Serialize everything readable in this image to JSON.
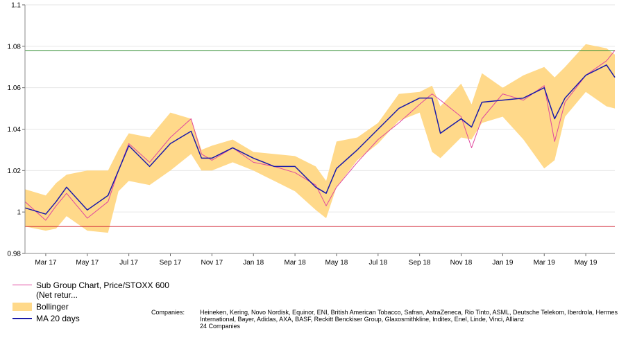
{
  "chart_data": {
    "type": "line",
    "x_ticks": [
      "Mar 17",
      "May 17",
      "Jul 17",
      "Sep 17",
      "Nov 17",
      "Jan 18",
      "Mar 18",
      "May 18",
      "Jul 18",
      "Sep 18",
      "Nov 18",
      "Jan 19",
      "Mar 19",
      "May 19"
    ],
    "x_range_months": [
      0,
      28.4
    ],
    "y_ticks": [
      "0.98",
      "1",
      "1.02",
      "1.04",
      "1.06",
      "1.08",
      "1.1"
    ],
    "ylim": [
      0.98,
      1.1
    ],
    "grid": true,
    "reference_lines": [
      {
        "y": 1.078,
        "color": "#2e8b2e"
      },
      {
        "y": 0.993,
        "color": "#d02030"
      }
    ],
    "months_since_first": [
      0,
      1,
      1.5,
      2,
      3,
      4,
      4.5,
      5,
      6,
      7,
      8,
      8.5,
      9,
      10,
      11,
      12,
      13,
      14,
      14.5,
      15,
      16,
      17,
      18,
      19,
      19.6,
      20,
      21,
      21.5,
      22,
      23,
      24,
      25,
      25.5,
      26,
      27,
      28,
      28.4
    ],
    "series": [
      {
        "name": "Sub Group Chart, Price/STOXX 600 (Net retur...",
        "color": "#e0479e",
        "values": [
          1.005,
          0.996,
          1.003,
          1.009,
          0.997,
          1.005,
          1.02,
          1.033,
          1.024,
          1.036,
          1.045,
          1.028,
          1.025,
          1.031,
          1.024,
          1.022,
          1.019,
          1.013,
          1.003,
          1.012,
          1.024,
          1.035,
          1.043,
          1.052,
          1.057,
          1.054,
          1.046,
          1.031,
          1.045,
          1.057,
          1.054,
          1.061,
          1.034,
          1.053,
          1.066,
          1.073,
          1.078
        ]
      },
      {
        "name": "Bollinger",
        "color": "#ffd98a",
        "upper": [
          1.011,
          1.008,
          1.014,
          1.018,
          1.02,
          1.02,
          1.03,
          1.038,
          1.036,
          1.048,
          1.045,
          1.03,
          1.032,
          1.035,
          1.029,
          1.028,
          1.027,
          1.022,
          1.015,
          1.034,
          1.036,
          1.043,
          1.057,
          1.058,
          1.061,
          1.051,
          1.062,
          1.052,
          1.067,
          1.06,
          1.066,
          1.07,
          1.065,
          1.07,
          1.081,
          1.079,
          1.076
        ],
        "lower": [
          0.993,
          0.991,
          0.992,
          0.998,
          0.991,
          0.99,
          1.01,
          1.015,
          1.013,
          1.02,
          1.028,
          1.02,
          1.02,
          1.024,
          1.02,
          1.015,
          1.01,
          1.001,
          0.997,
          1.012,
          1.025,
          1.033,
          1.044,
          1.048,
          1.029,
          1.026,
          1.036,
          1.035,
          1.043,
          1.046,
          1.035,
          1.021,
          1.025,
          1.046,
          1.058,
          1.051,
          1.05
        ]
      },
      {
        "name": "MA 20 days",
        "color": "#1a1aaa",
        "values": [
          1.002,
          0.999,
          1.005,
          1.012,
          1.001,
          1.008,
          1.02,
          1.032,
          1.022,
          1.033,
          1.039,
          1.026,
          1.026,
          1.031,
          1.026,
          1.022,
          1.022,
          1.012,
          1.009,
          1.021,
          1.03,
          1.04,
          1.05,
          1.055,
          1.055,
          1.038,
          1.045,
          1.041,
          1.053,
          1.054,
          1.055,
          1.06,
          1.045,
          1.055,
          1.066,
          1.071,
          1.065
        ]
      }
    ]
  },
  "legend": {
    "items": [
      {
        "label": "Sub Group Chart, Price/STOXX 600 (Net retur..."
      },
      {
        "label": "Bollinger"
      },
      {
        "label": "MA 20 days"
      }
    ]
  },
  "companies": {
    "label": "Companies:",
    "list": "Heineken, Kering, Novo Nordisk, Equinor, ENI, British American Tobacco, Safran, AstraZeneca, Rio Tinto, ASML, Deutsche Telekom, Iberdrola, Hermes International, Bayer, Adidas, AXA, BASF, Reckitt Benckiser Group, Glaxosmithkline, Inditex, Enel, Linde, Vinci, Allianz",
    "count": "24 Companies"
  },
  "colors": {
    "price_line": "#e0479e",
    "bollinger_band": "#ffd98a",
    "ma_line": "#1a1aaa",
    "upper_ref": "#2e8b2e",
    "lower_ref": "#d02030",
    "grid": "#e6e6e6"
  }
}
